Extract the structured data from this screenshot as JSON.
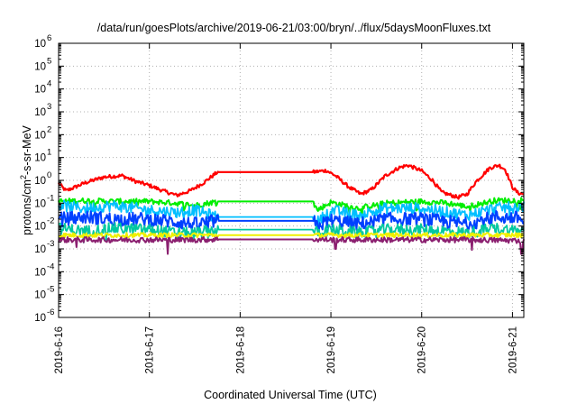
{
  "chart_data": {
    "type": "line",
    "title": "/data/run/goesPlots/archive/2019-06-21/03:00/bryn/../flux/5daysMoonFluxes.txt",
    "xlabel": "Coordinated Universal Time (UTC)",
    "ylabel_parts": [
      "protons/cm",
      "2",
      "-s-sr-MeV"
    ],
    "yscale": "log",
    "ylim": [
      1e-06,
      1000000.0
    ],
    "xlim": [
      "2019-06-16",
      "2019-06-21 03:00"
    ],
    "grid": true,
    "y_ticks": [
      {
        "value": 1e-06,
        "base": "10",
        "exp": "-6"
      },
      {
        "value": 1e-05,
        "base": "10",
        "exp": "-5"
      },
      {
        "value": 0.0001,
        "base": "10",
        "exp": "-4"
      },
      {
        "value": 0.001,
        "base": "10",
        "exp": "-3"
      },
      {
        "value": 0.01,
        "base": "10",
        "exp": "-2"
      },
      {
        "value": 0.1,
        "base": "10",
        "exp": "-1"
      },
      {
        "value": 1,
        "base": "10",
        "exp": "0"
      },
      {
        "value": 10,
        "base": "10",
        "exp": "1"
      },
      {
        "value": 100,
        "base": "10",
        "exp": "2"
      },
      {
        "value": 1000,
        "base": "10",
        "exp": "3"
      },
      {
        "value": 10000,
        "base": "10",
        "exp": "4"
      },
      {
        "value": 100000,
        "base": "10",
        "exp": "5"
      },
      {
        "value": 1000000,
        "base": "10",
        "exp": "6"
      }
    ],
    "x_ticks": [
      {
        "day": 0,
        "label": "2019-6-16"
      },
      {
        "day": 1,
        "label": "2019-6-17"
      },
      {
        "day": 2,
        "label": "2019-6-18"
      },
      {
        "day": 3,
        "label": "2019-6-19"
      },
      {
        "day": 4,
        "label": "2019-6-20"
      },
      {
        "day": 5,
        "label": "2019-6-21"
      }
    ],
    "series": [
      {
        "color": "#ff0000",
        "lw": 2.2,
        "points": [
          [
            0,
            0.75
          ],
          [
            0.08,
            0.35
          ],
          [
            0.15,
            0.45
          ],
          [
            0.3,
            0.8
          ],
          [
            0.5,
            1.4
          ],
          [
            0.7,
            1.6
          ],
          [
            0.85,
            0.9
          ],
          [
            1.0,
            0.6
          ],
          [
            1.15,
            0.35
          ],
          [
            1.3,
            0.22
          ],
          [
            1.45,
            0.35
          ],
          [
            1.6,
            0.8
          ],
          [
            1.75,
            2.3
          ],
          [
            2.8,
            2.3
          ],
          [
            2.95,
            2.7
          ],
          [
            3.05,
            1.6
          ],
          [
            3.2,
            0.5
          ],
          [
            3.33,
            0.25
          ],
          [
            3.45,
            0.4
          ],
          [
            3.6,
            1.6
          ],
          [
            3.75,
            3.6
          ],
          [
            3.85,
            4.6
          ],
          [
            4.0,
            2.6
          ],
          [
            4.12,
            1.0
          ],
          [
            4.22,
            0.3
          ],
          [
            4.4,
            0.18
          ],
          [
            4.5,
            0.25
          ],
          [
            4.6,
            0.9
          ],
          [
            4.75,
            3.5
          ],
          [
            4.85,
            4.6
          ],
          [
            4.92,
            3.0
          ],
          [
            5.0,
            0.5
          ],
          [
            5.06,
            0.28
          ],
          [
            5.125,
            0.25
          ]
        ],
        "noise": 0.08
      },
      {
        "color": "#00ee00",
        "lw": 2,
        "points": [
          [
            0,
            0.12
          ],
          [
            0.3,
            0.13
          ],
          [
            0.6,
            0.12
          ],
          [
            1.0,
            0.12
          ],
          [
            1.3,
            0.1
          ],
          [
            1.5,
            0.08
          ],
          [
            1.75,
            0.12
          ],
          [
            2.8,
            0.12
          ],
          [
            2.85,
            0.05
          ],
          [
            3.0,
            0.11
          ],
          [
            3.3,
            0.06
          ],
          [
            3.6,
            0.1
          ],
          [
            4.0,
            0.12
          ],
          [
            4.3,
            0.1
          ],
          [
            4.5,
            0.07
          ],
          [
            4.8,
            0.13
          ],
          [
            5.125,
            0.14
          ]
        ],
        "noise": 0.12
      },
      {
        "color": "#00bfff",
        "lw": 1.8,
        "points": [
          [
            0,
            0.08
          ],
          [
            0.3,
            0.06
          ],
          [
            0.6,
            0.08
          ],
          [
            1.0,
            0.05
          ],
          [
            1.3,
            0.04
          ],
          [
            1.5,
            0.05
          ],
          [
            1.75,
            0.025
          ],
          [
            2.8,
            0.025
          ],
          [
            2.85,
            0.015
          ],
          [
            3.0,
            0.05
          ],
          [
            3.3,
            0.03
          ],
          [
            3.6,
            0.06
          ],
          [
            4.0,
            0.06
          ],
          [
            4.3,
            0.04
          ],
          [
            4.5,
            0.03
          ],
          [
            4.8,
            0.06
          ],
          [
            5.125,
            0.07
          ]
        ],
        "noise": 0.25
      },
      {
        "color": "#0040ff",
        "lw": 2,
        "points": [
          [
            0,
            0.02
          ],
          [
            0.3,
            0.025
          ],
          [
            0.6,
            0.02
          ],
          [
            1.0,
            0.02
          ],
          [
            1.3,
            0.015
          ],
          [
            1.5,
            0.012
          ],
          [
            1.75,
            0.017
          ],
          [
            2.8,
            0.017
          ],
          [
            2.85,
            0.01
          ],
          [
            3.0,
            0.018
          ],
          [
            3.3,
            0.012
          ],
          [
            3.6,
            0.02
          ],
          [
            4.0,
            0.02
          ],
          [
            4.3,
            0.015
          ],
          [
            4.5,
            0.012
          ],
          [
            4.8,
            0.025
          ],
          [
            5.125,
            0.022
          ]
        ],
        "noise": 0.3
      },
      {
        "color": "#00c8a0",
        "lw": 1.8,
        "points": [
          [
            0,
            0.008
          ],
          [
            0.3,
            0.006
          ],
          [
            0.6,
            0.008
          ],
          [
            1.0,
            0.007
          ],
          [
            1.3,
            0.005
          ],
          [
            1.5,
            0.005
          ],
          [
            1.75,
            0.007
          ],
          [
            2.8,
            0.007
          ],
          [
            2.85,
            0.005
          ],
          [
            3.0,
            0.007
          ],
          [
            3.3,
            0.005
          ],
          [
            3.6,
            0.007
          ],
          [
            4.0,
            0.007
          ],
          [
            4.3,
            0.006
          ],
          [
            4.5,
            0.005
          ],
          [
            4.8,
            0.008
          ],
          [
            5.125,
            0.006
          ]
        ],
        "noise": 0.25
      },
      {
        "color": "#f0f000",
        "lw": 2,
        "points": [
          [
            0,
            0.004
          ],
          [
            0.5,
            0.004
          ],
          [
            1.0,
            0.004
          ],
          [
            1.5,
            0.004
          ],
          [
            1.75,
            0.004
          ],
          [
            2.8,
            0.004
          ],
          [
            3.0,
            0.004
          ],
          [
            3.5,
            0.004
          ],
          [
            4.0,
            0.004
          ],
          [
            4.5,
            0.004
          ],
          [
            5.125,
            0.004
          ]
        ],
        "noise": 0.1
      },
      {
        "color": "#8b2070",
        "lw": 2,
        "points": [
          [
            0,
            0.0025
          ],
          [
            0.5,
            0.0025
          ],
          [
            1.0,
            0.0025
          ],
          [
            1.5,
            0.0025
          ],
          [
            1.75,
            0.0026
          ],
          [
            2.8,
            0.0026
          ],
          [
            3.0,
            0.0025
          ],
          [
            3.5,
            0.0025
          ],
          [
            4.0,
            0.0025
          ],
          [
            4.5,
            0.0025
          ],
          [
            5.125,
            0.0023
          ]
        ],
        "noise": 0.12,
        "dips": [
          [
            0.2,
            0.0012
          ],
          [
            1.2,
            0.0006
          ],
          [
            3.05,
            0.001
          ],
          [
            4.55,
            0.0009
          ],
          [
            5.1,
            0.0006
          ]
        ]
      }
    ]
  }
}
